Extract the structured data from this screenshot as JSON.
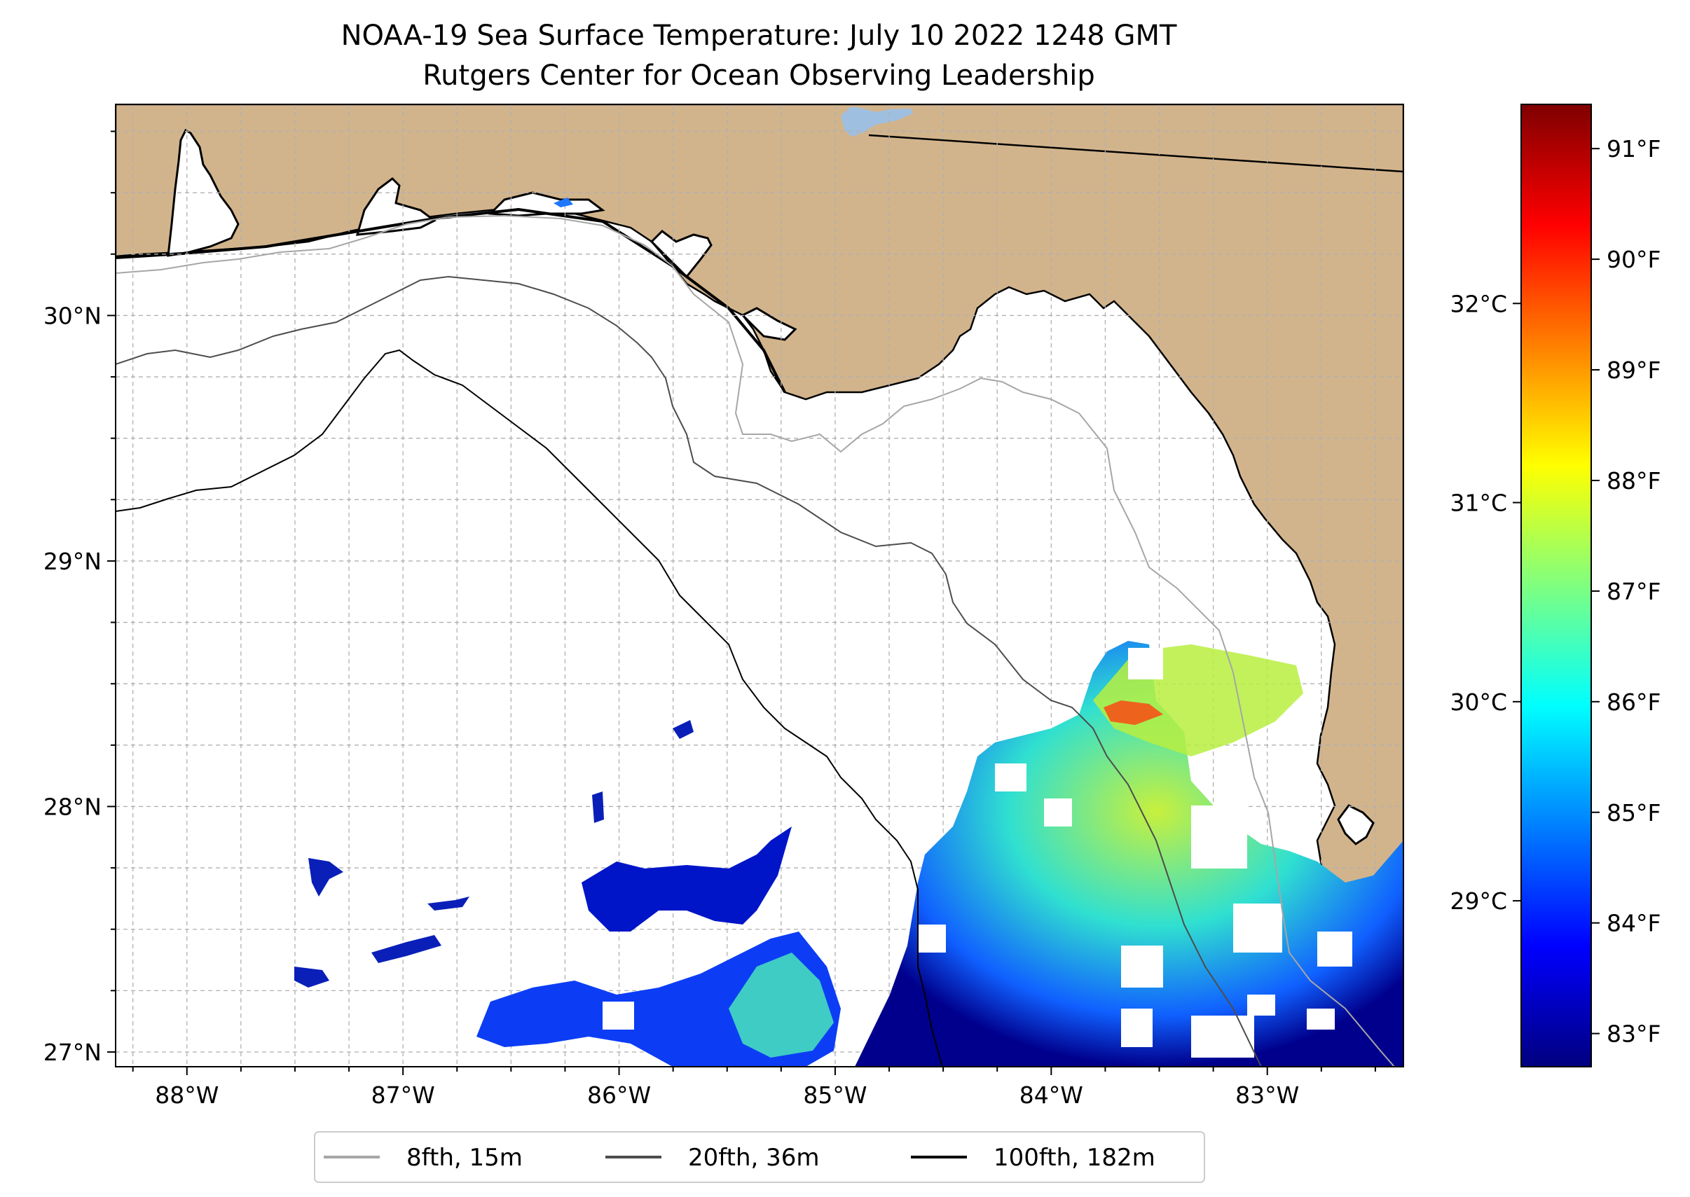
{
  "title": {
    "line1": "NOAA-19 Sea Surface Temperature: July 10 2022 1248 GMT",
    "line2": "Rutgers Center for Ocean Observing Leadership"
  },
  "map": {
    "extent": {
      "lon_min": -88.33,
      "lon_max": -82.37,
      "lat_min": 26.94,
      "lat_max": 30.86
    },
    "land_color": "#d2b48c",
    "water_color": "#ffffff",
    "lake_color": "#9fbfe0",
    "coastline_color": "#000000",
    "gridlines": true,
    "lon_ticks": [
      {
        "lon": -88,
        "label": "88°W"
      },
      {
        "lon": -87,
        "label": "87°W"
      },
      {
        "lon": -86,
        "label": "86°W"
      },
      {
        "lon": -85,
        "label": "85°W"
      },
      {
        "lon": -84,
        "label": "84°W"
      },
      {
        "lon": -83,
        "label": "83°W"
      }
    ],
    "lat_ticks": [
      {
        "lat": 30,
        "label": "30°N"
      },
      {
        "lat": 29,
        "label": "29°N"
      },
      {
        "lat": 28,
        "label": "28°N"
      },
      {
        "lat": 27,
        "label": "27°N"
      }
    ]
  },
  "legend": {
    "placement": "bottom-center",
    "items": [
      {
        "label": "8fth, 15m",
        "color": "#a6a6a6"
      },
      {
        "label": "20fth, 36m",
        "color": "#4d4d4d"
      },
      {
        "label": "100fth, 182m",
        "color": "#000000"
      }
    ]
  },
  "colorbar": {
    "colormap": "jet",
    "range_f": [
      82.7,
      91.4
    ],
    "fahrenheit_ticks": [
      {
        "value": 83,
        "label": "83°F"
      },
      {
        "value": 84,
        "label": "84°F"
      },
      {
        "value": 85,
        "label": "85°F"
      },
      {
        "value": 86,
        "label": "86°F"
      },
      {
        "value": 87,
        "label": "87°F"
      },
      {
        "value": 88,
        "label": "88°F"
      },
      {
        "value": 89,
        "label": "89°F"
      },
      {
        "value": 90,
        "label": "90°F"
      },
      {
        "value": 91,
        "label": "91°F"
      }
    ],
    "celsius_ticks": [
      {
        "value": 29,
        "label": "29°C"
      },
      {
        "value": 30,
        "label": "30°C"
      },
      {
        "value": 31,
        "label": "31°C"
      },
      {
        "value": 32,
        "label": "32°C"
      }
    ]
  }
}
